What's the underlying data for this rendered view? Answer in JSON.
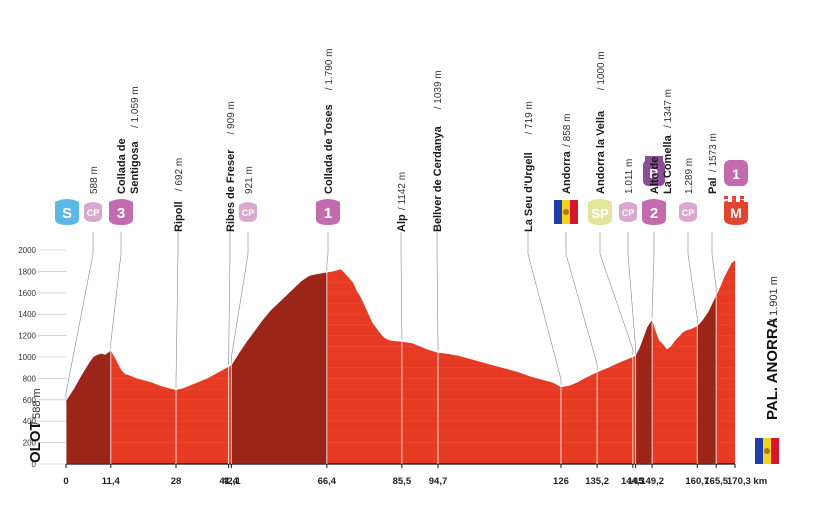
{
  "chart_data": {
    "type": "area",
    "xlabel": "",
    "ylabel": "",
    "xlim": [
      0,
      170.3
    ],
    "ylim": [
      0,
      2000
    ],
    "yticks": [
      "0",
      "200",
      "400",
      "600",
      "800",
      "1000",
      "1200",
      "1400",
      "1600",
      "1800",
      "2000"
    ],
    "xticks": [
      "0",
      "11,4",
      "28",
      "41,4",
      "42,1",
      "66,4",
      "85,5",
      "94,7",
      "126",
      "135,2",
      "144,3",
      "145",
      "149,2",
      "160,7",
      "165,5",
      "170,3 km"
    ],
    "xtick_values": [
      0,
      11.4,
      28,
      41.4,
      42.1,
      66.4,
      85.5,
      94.7,
      126,
      135.2,
      144.3,
      145,
      149.2,
      160.7,
      165.5,
      170.3
    ],
    "profile": {
      "x": [
        0,
        2,
        4,
        6,
        7,
        8,
        9,
        10,
        11.4,
        12.5,
        14,
        15,
        16,
        18,
        20,
        22,
        24,
        26,
        28,
        30,
        32,
        34,
        36,
        38,
        40,
        41.4,
        42.1,
        44,
        46,
        48,
        50,
        52,
        54,
        56,
        58,
        60,
        62,
        64,
        66.4,
        68,
        70,
        71,
        72,
        73,
        74,
        75,
        76,
        77,
        78,
        79,
        80,
        81,
        82,
        83,
        85.5,
        88,
        90,
        92,
        94.7,
        97,
        100,
        103,
        106,
        109,
        112,
        115,
        118,
        121,
        124,
        126,
        128,
        130,
        132,
        135.2,
        138,
        141,
        144.3,
        145,
        146,
        147,
        148,
        149.2,
        150,
        151,
        152,
        153,
        154,
        155,
        156,
        157,
        158,
        159,
        160.7,
        162,
        163.5,
        165.5,
        166.5,
        167.5,
        168.5,
        169.5,
        170.3
      ],
      "y": [
        588,
        700,
        830,
        950,
        1000,
        1020,
        1030,
        1020,
        1059,
        990,
        880,
        840,
        830,
        800,
        780,
        760,
        730,
        710,
        692,
        710,
        740,
        770,
        800,
        840,
        880,
        909,
        921,
        1030,
        1140,
        1240,
        1340,
        1430,
        1500,
        1570,
        1640,
        1710,
        1760,
        1775,
        1790,
        1800,
        1820,
        1780,
        1740,
        1700,
        1620,
        1560,
        1480,
        1400,
        1320,
        1270,
        1220,
        1180,
        1160,
        1150,
        1142,
        1130,
        1100,
        1070,
        1039,
        1030,
        1010,
        980,
        950,
        920,
        890,
        860,
        820,
        790,
        760,
        719,
        730,
        760,
        800,
        858,
        900,
        950,
        1000,
        1011,
        1080,
        1180,
        1280,
        1347,
        1250,
        1150,
        1120,
        1070,
        1100,
        1150,
        1190,
        1230,
        1250,
        1260,
        1289,
        1340,
        1420,
        1573,
        1650,
        1740,
        1810,
        1880,
        1901
      ]
    },
    "waypoints": [
      {
        "km": 0,
        "name": "",
        "alt": "588 m",
        "badge": "CP",
        "badge_color": "#d9a8cf"
      },
      {
        "km": 11.4,
        "name": "Collada de",
        "name2": "Sentigosa",
        "alt": "/ 1.059 m",
        "badge": "3",
        "badge_color": "#c46bb0"
      },
      {
        "km": 28,
        "name": "Ripoll",
        "alt": "/ 692 m",
        "badge": ""
      },
      {
        "km": 41.4,
        "name": "Ribes de Freser",
        "alt": "/ 909 m",
        "badge": ""
      },
      {
        "km": 42.1,
        "name": "",
        "alt": "921 m",
        "badge": "CP",
        "badge_color": "#d9a8cf"
      },
      {
        "km": 66.4,
        "name": "Collada de Toses",
        "alt": "/ 1.790 m",
        "badge": "1",
        "badge_color": "#c46bb0"
      },
      {
        "km": 85.5,
        "name": "Alp",
        "alt": "/ 1142 m",
        "badge": ""
      },
      {
        "km": 94.7,
        "name": "Bellver de Cerdanya",
        "alt": "/ 1039 m",
        "badge": ""
      },
      {
        "km": 126,
        "name": "La Seu d'Urgell",
        "alt": "/ 719 m",
        "badge": ""
      },
      {
        "km": 135.2,
        "name": "Andorra",
        "alt": "/ 858 m",
        "badge": "flag"
      },
      {
        "km": 144.3,
        "name": "Andorra la Vella",
        "alt": "/ 1000 m",
        "badge": "SP",
        "badge_color": "#e2e59a"
      },
      {
        "km": 145,
        "name": "",
        "alt": "1.011 m",
        "badge": "CP",
        "badge_color": "#d9a8cf"
      },
      {
        "km": 149.2,
        "name": "Alto de",
        "name2": "La Comella",
        "alt": "/ 1347 m",
        "badge": "2",
        "badge_color": "#c46bb0"
      },
      {
        "km": 160.7,
        "name": "",
        "alt": "1.289 m",
        "badge": "CP",
        "badge_color": "#d9a8cf"
      },
      {
        "km": 165.5,
        "name": "Pal",
        "alt": "/ 1573 m",
        "badge": "M",
        "badge_color": "#e2452f"
      }
    ],
    "start_badge": {
      "text": "S",
      "color": "#5bb8e6"
    },
    "b_badge": {
      "text": "B",
      "color": "#8a4d96"
    },
    "finish_cat_badge": {
      "text": "1",
      "color": "#c46bb0"
    },
    "start_label": {
      "name": "OLOT",
      "alt": "/ 588 m"
    },
    "finish_label": {
      "name": "PAL. ANORRA",
      "alt": "/ 1.901 m"
    },
    "colors": {
      "profile": "#e63a22",
      "profile_dark": "#8c2216",
      "grid": "#f2b3a8"
    }
  }
}
